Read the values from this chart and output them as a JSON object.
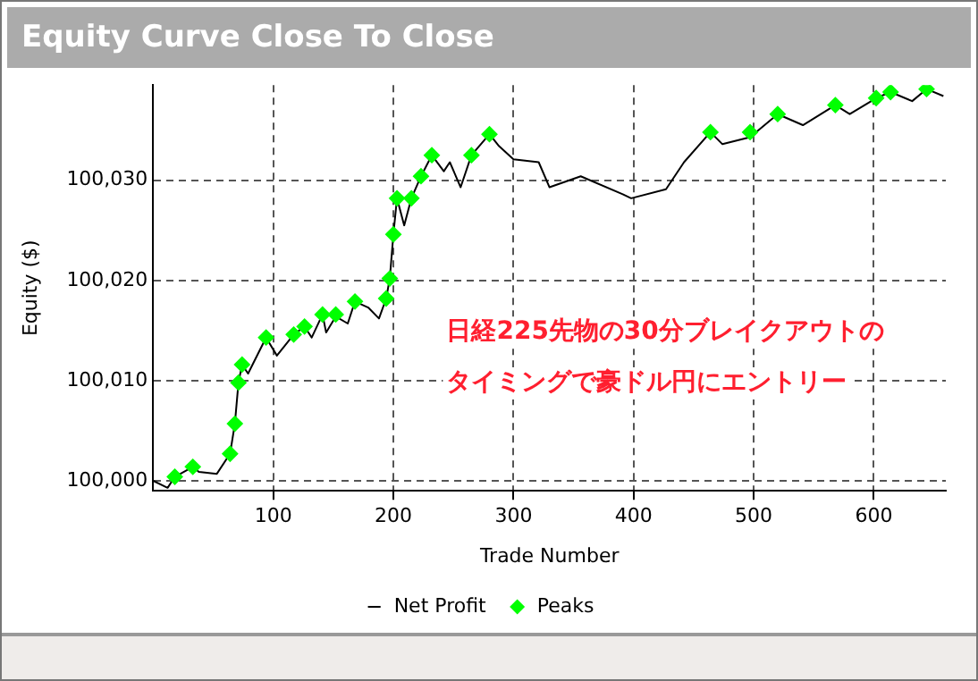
{
  "chart_data": {
    "type": "line",
    "title": "Equity Curve Close To Close",
    "xlabel": "Trade Number",
    "ylabel": "Equity ($)",
    "annotations": [
      "日経225先物の30分ブレイクアウトの",
      "タイミングで豪ドル円にエントリー"
    ],
    "xlim": [
      0,
      660
    ],
    "xticks": [
      100,
      200,
      300,
      400,
      500,
      600
    ],
    "ylim": [
      99999,
      100039.5
    ],
    "yticks": [
      {
        "value": 100000,
        "label": "100,000"
      },
      {
        "value": 100010,
        "label": "100,010"
      },
      {
        "value": 100020,
        "label": "100,020"
      },
      {
        "value": 100030,
        "label": "100,030"
      }
    ],
    "grid": true,
    "legend": "bottom",
    "series": [
      {
        "name": "Net Profit",
        "type": "line",
        "color": "#000000",
        "marker": "none",
        "x": [
          0,
          12,
          18,
          33,
          38,
          53,
          64,
          68,
          71,
          74,
          79,
          94,
          103,
          117,
          126,
          132,
          141,
          144,
          152,
          162,
          168,
          179,
          188,
          194,
          197,
          200,
          203,
          209,
          215,
          223,
          232,
          242,
          247,
          256,
          265,
          280,
          288,
          300,
          321,
          330,
          356,
          391,
          398,
          427,
          442,
          464,
          474,
          497,
          520,
          541,
          568,
          580,
          602,
          614,
          632,
          644,
          658
        ],
        "values": [
          100000,
          99999.3,
          100000.4,
          100001.4,
          100000.9,
          100000.7,
          100002.7,
          100005.7,
          100009.8,
          100011.6,
          100010.7,
          100014.3,
          100012.5,
          100014.6,
          100015.4,
          100014.3,
          100016.6,
          100014.8,
          100016.4,
          100015.7,
          100017.9,
          100017.3,
          100016.2,
          100018.2,
          100020.2,
          100024.6,
          100028.2,
          100025.5,
          100028.2,
          100030.4,
          100032.5,
          100030.9,
          100031.8,
          100029.3,
          100032.5,
          100034.6,
          100033.4,
          100032.1,
          100031.8,
          100029.3,
          100030.4,
          100028.6,
          100028.2,
          100029.1,
          100031.8,
          100034.8,
          100033.6,
          100034.3,
          100036.6,
          100035.5,
          100037.5,
          100036.6,
          100038.2,
          100038.8,
          100037.9,
          100039.1,
          100038.4
        ]
      },
      {
        "name": "Peaks",
        "type": "scatter",
        "color": "#00ff00",
        "marker": "diamond",
        "x": [
          18,
          33,
          64,
          68,
          71,
          74,
          94,
          117,
          126,
          141,
          152,
          168,
          194,
          197,
          200,
          203,
          215,
          223,
          232,
          265,
          280,
          464,
          497,
          520,
          568,
          602,
          614,
          644
        ],
        "values": [
          100000.4,
          100001.4,
          100002.7,
          100005.7,
          100009.8,
          100011.6,
          100014.3,
          100014.6,
          100015.4,
          100016.6,
          100016.6,
          100017.9,
          100018.2,
          100020.2,
          100024.6,
          100028.2,
          100028.2,
          100030.4,
          100032.5,
          100032.5,
          100034.6,
          100034.8,
          100034.8,
          100036.6,
          100037.5,
          100038.2,
          100038.8,
          100039.1
        ]
      }
    ]
  }
}
